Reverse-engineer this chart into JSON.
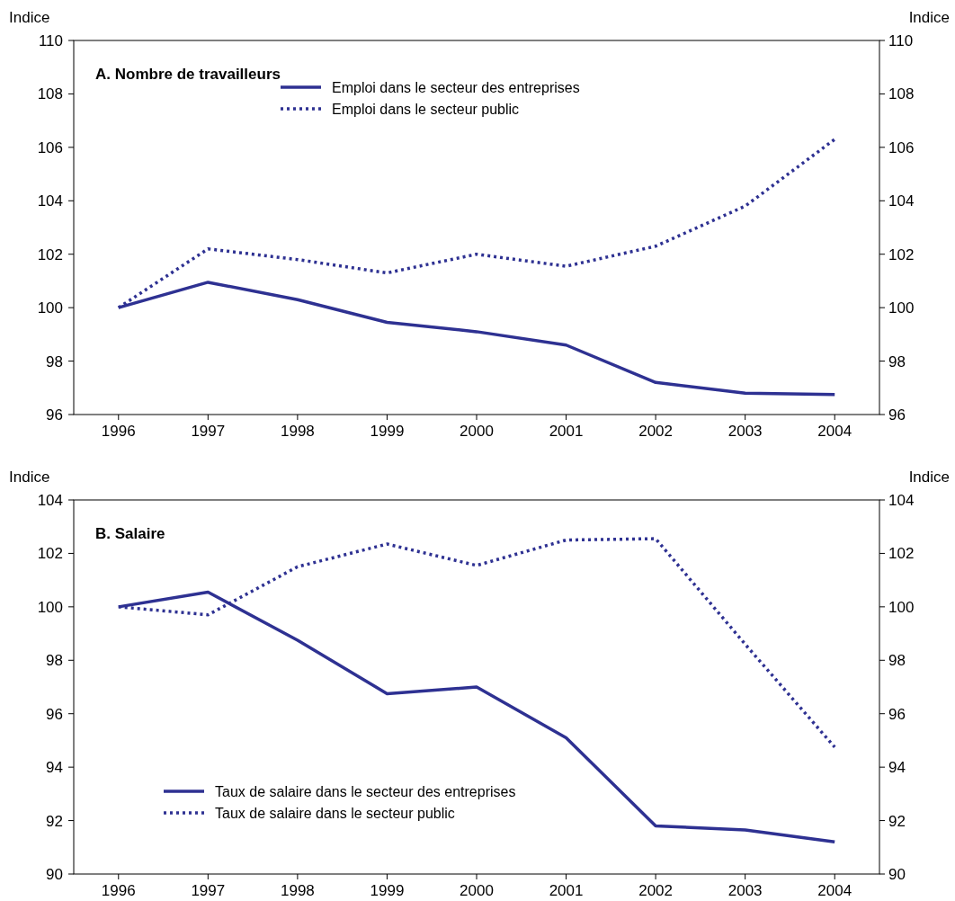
{
  "chart_data": [
    {
      "type": "line",
      "title": "A. Nombre de travailleurs",
      "ylabel": "Indice",
      "y2label": "Indice",
      "categories": [
        "1996",
        "1997",
        "1998",
        "1999",
        "2000",
        "2001",
        "2002",
        "2003",
        "2004"
      ],
      "series": [
        {
          "name": "Emploi dans le secteur des entreprises",
          "color": "#2e3192",
          "line_style": "solid",
          "values": [
            100,
            100.95,
            100.3,
            99.45,
            99.1,
            98.6,
            97.2,
            96.8,
            96.75
          ]
        },
        {
          "name": "Emploi dans le secteur public",
          "color": "#2e3192",
          "line_style": "dotted",
          "values": [
            100,
            102.2,
            101.8,
            101.3,
            102.0,
            101.55,
            102.3,
            103.8,
            106.3
          ]
        }
      ],
      "ylim": [
        96,
        110
      ],
      "yticks": [
        96,
        98,
        100,
        102,
        104,
        106,
        108,
        110
      ],
      "y2lim": [
        96,
        110
      ],
      "y2ticks": [
        96,
        98,
        100,
        102,
        104,
        106,
        108,
        110
      ],
      "legend": "top"
    },
    {
      "type": "line",
      "title": "B. Salaire",
      "ylabel": "Indice",
      "y2label": "Indice",
      "categories": [
        "1996",
        "1997",
        "1998",
        "1999",
        "2000",
        "2001",
        "2002",
        "2003",
        "2004"
      ],
      "series": [
        {
          "name": "Taux de salaire dans le secteur des entreprises",
          "color": "#2e3192",
          "line_style": "solid",
          "values": [
            100,
            100.55,
            98.75,
            96.75,
            97.0,
            95.1,
            91.8,
            91.65,
            91.2
          ]
        },
        {
          "name": "Taux de salaire dans le secteur public",
          "color": "#2e3192",
          "line_style": "dotted",
          "values": [
            100,
            99.7,
            101.5,
            102.35,
            101.55,
            102.5,
            102.55,
            98.6,
            94.75
          ]
        }
      ],
      "ylim": [
        90,
        104
      ],
      "yticks": [
        90,
        92,
        94,
        96,
        98,
        100,
        102,
        104
      ],
      "y2lim": [
        90,
        104
      ],
      "y2ticks": [
        90,
        92,
        94,
        96,
        98,
        100,
        102,
        104
      ],
      "legend": "bottom left"
    }
  ]
}
